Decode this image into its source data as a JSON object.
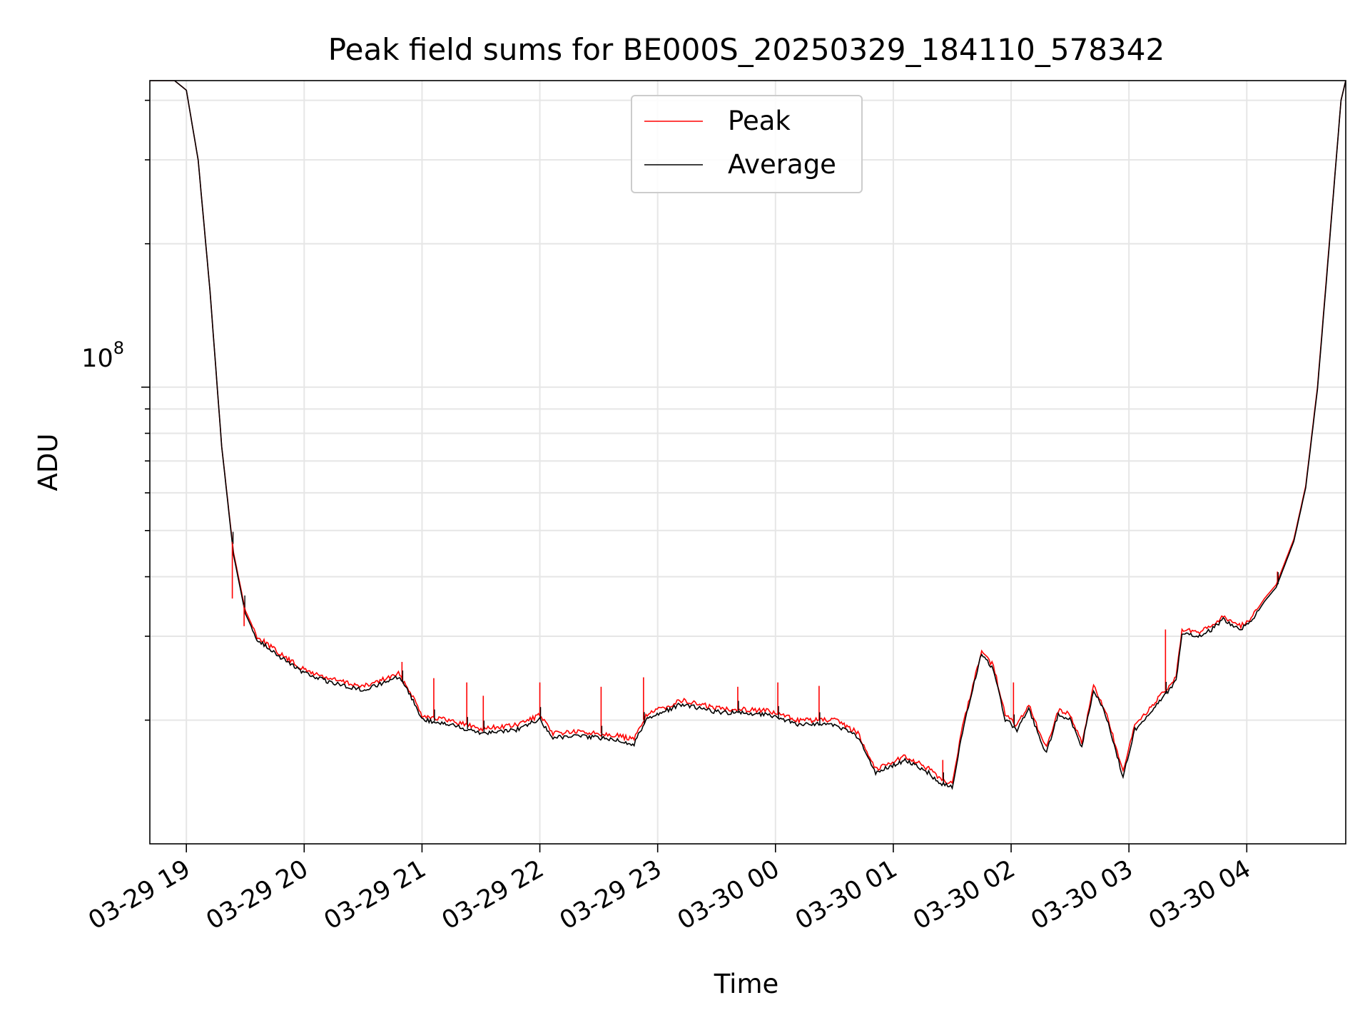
{
  "chart_data": {
    "type": "line",
    "title": "Peak field sums for BE000S_20250329_184110_578342",
    "xlabel": "Time",
    "ylabel": "ADU",
    "yscale": "log",
    "grid": true,
    "legend_position": "upper-center",
    "x_tick_labels": [
      "03-29 19",
      "03-29 20",
      "03-29 21",
      "03-29 22",
      "03-29 23",
      "03-30 00",
      "03-30 01",
      "03-30 02",
      "03-30 03",
      "03-30 04"
    ],
    "x_tick_hours": [
      0,
      1,
      2,
      3,
      4,
      5,
      6,
      7,
      8,
      9
    ],
    "xlim_hours": [
      -0.31,
      9.84
    ],
    "ylim": [
      11000000,
      440000000
    ],
    "y_tick_label": {
      "base": "10",
      "exponent": "8"
    },
    "y_major_tick_value": 100000000,
    "x_unit_note": "hours after 2025-03-29 19:00",
    "series": [
      {
        "name": "Peak",
        "color": "#ff0000",
        "x": [
          -0.31,
          -0.1,
          0.0,
          0.1,
          0.2,
          0.3,
          0.4,
          0.5,
          0.6,
          0.8,
          1.0,
          1.2,
          1.5,
          1.8,
          1.9,
          2.0,
          2.3,
          2.5,
          2.8,
          3.0,
          3.1,
          3.3,
          3.6,
          3.8,
          3.9,
          4.2,
          4.5,
          4.9,
          5.2,
          5.5,
          5.7,
          5.85,
          6.1,
          6.3,
          6.4,
          6.5,
          6.6,
          6.75,
          6.85,
          6.95,
          7.05,
          7.15,
          7.25,
          7.3,
          7.4,
          7.5,
          7.6,
          7.7,
          7.8,
          7.95,
          8.05,
          8.2,
          8.4,
          8.45,
          8.6,
          8.7,
          8.8,
          8.95,
          9.05,
          9.15,
          9.25,
          9.4,
          9.5,
          9.6,
          9.7,
          9.8,
          9.84
        ],
        "y": [
          440000000,
          440000000,
          420000000,
          300000000,
          160000000,
          75000000,
          45000000,
          34000000,
          30000000,
          27500000,
          25500000,
          24500000,
          23500000,
          25000000,
          23000000,
          20500000,
          19800000,
          19200000,
          19500000,
          20500000,
          18800000,
          18900000,
          18700000,
          18200000,
          20500000,
          22000000,
          21200000,
          21000000,
          20000000,
          20000000,
          18800000,
          15800000,
          16800000,
          15800000,
          15000000,
          14800000,
          20000000,
          28000000,
          26000000,
          20500000,
          19500000,
          21500000,
          18500000,
          17500000,
          21000000,
          20500000,
          18000000,
          23500000,
          21000000,
          15500000,
          19500000,
          21500000,
          24500000,
          31000000,
          30500000,
          31500000,
          33000000,
          31500000,
          33000000,
          36000000,
          38500000,
          48000000,
          62000000,
          100000000,
          200000000,
          400000000,
          440000000
        ]
      },
      {
        "name": "Average",
        "color": "#000000",
        "x": [
          -0.31,
          -0.1,
          0.0,
          0.1,
          0.2,
          0.3,
          0.4,
          0.5,
          0.6,
          0.8,
          1.0,
          1.2,
          1.5,
          1.8,
          1.9,
          2.0,
          2.3,
          2.5,
          2.8,
          3.0,
          3.1,
          3.3,
          3.6,
          3.8,
          3.9,
          4.2,
          4.5,
          4.9,
          5.2,
          5.5,
          5.7,
          5.85,
          6.1,
          6.3,
          6.4,
          6.5,
          6.6,
          6.75,
          6.85,
          6.95,
          7.05,
          7.15,
          7.25,
          7.3,
          7.4,
          7.5,
          7.6,
          7.7,
          7.8,
          7.95,
          8.05,
          8.2,
          8.4,
          8.45,
          8.6,
          8.7,
          8.8,
          8.95,
          9.05,
          9.15,
          9.25,
          9.4,
          9.5,
          9.6,
          9.7,
          9.8,
          9.84
        ],
        "y": [
          440000000,
          440000000,
          420000000,
          300000000,
          160000000,
          75000000,
          44500000,
          33500000,
          29600000,
          27100000,
          25100000,
          24100000,
          23100000,
          24600000,
          22600000,
          20100000,
          19400000,
          18800000,
          19100000,
          20100000,
          18400000,
          18500000,
          18300000,
          17800000,
          20100000,
          21600000,
          20800000,
          20600000,
          19600000,
          19600000,
          18400000,
          15500000,
          16500000,
          15500000,
          14700000,
          14500000,
          19600000,
          27600000,
          25600000,
          20100000,
          19100000,
          21100000,
          18100000,
          17100000,
          20600000,
          20100000,
          17600000,
          23100000,
          20600000,
          15200000,
          19100000,
          21100000,
          24100000,
          30500000,
          30000000,
          31000000,
          32500000,
          31000000,
          32500000,
          35500000,
          38000000,
          47500000,
          61500000,
          99000000,
          198000000,
          400000000,
          440000000
        ]
      }
    ],
    "spikes": [
      {
        "x": 0.39,
        "y": 36000000
      },
      {
        "x": 0.49,
        "y": 31500000
      },
      {
        "x": 1.83,
        "y": 26500000
      },
      {
        "x": 2.1,
        "y": 24500000
      },
      {
        "x": 2.38,
        "y": 24000000
      },
      {
        "x": 2.52,
        "y": 22500000
      },
      {
        "x": 3.0,
        "y": 24000000
      },
      {
        "x": 3.52,
        "y": 23500000
      },
      {
        "x": 3.88,
        "y": 24600000
      },
      {
        "x": 4.68,
        "y": 23500000
      },
      {
        "x": 5.02,
        "y": 24000000
      },
      {
        "x": 5.37,
        "y": 23600000
      },
      {
        "x": 6.42,
        "y": 16500000
      },
      {
        "x": 7.02,
        "y": 24000000
      },
      {
        "x": 8.31,
        "y": 31000000
      },
      {
        "x": 9.26,
        "y": 41000000
      }
    ]
  }
}
